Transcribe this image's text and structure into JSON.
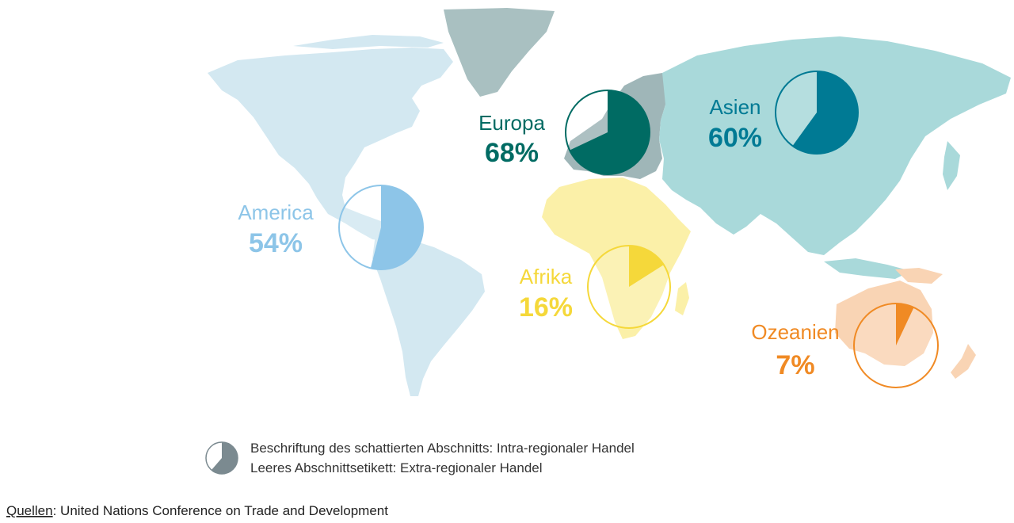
{
  "regions": {
    "europa": {
      "name": "Europa",
      "percent_label": "68%",
      "intra_share": 0.68,
      "color": "#006b63",
      "land_color": "#9fb6b8"
    },
    "asien": {
      "name": "Asien",
      "percent_label": "60%",
      "intra_share": 0.6,
      "color": "#007a94",
      "land_color": "#a9d9da"
    },
    "america": {
      "name": "America",
      "percent_label": "54%",
      "intra_share": 0.54,
      "color": "#8dc5e8",
      "land_color": "#d3e8f1"
    },
    "afrika": {
      "name": "Afrika",
      "percent_label": "16%",
      "intra_share": 0.16,
      "color": "#f5d83a",
      "land_color": "#fbf0a8"
    },
    "ozeanien": {
      "name": "Ozeanien",
      "percent_label": "7%",
      "intra_share": 0.07,
      "color": "#f08a24",
      "land_color": "#f9d4b4"
    }
  },
  "legend": {
    "line1": "Beschriftung des schattierten Abschnitts: Intra-regionaler Handel",
    "line2": "Leeres Abschnittsetikett: Extra-regionaler Handel",
    "icon_color": "#7b8a90"
  },
  "source": {
    "prefix": "Quellen",
    "text": ": United Nations Conference on Trade and Development"
  },
  "colors": {
    "greenland": "#a9c0c1"
  }
}
